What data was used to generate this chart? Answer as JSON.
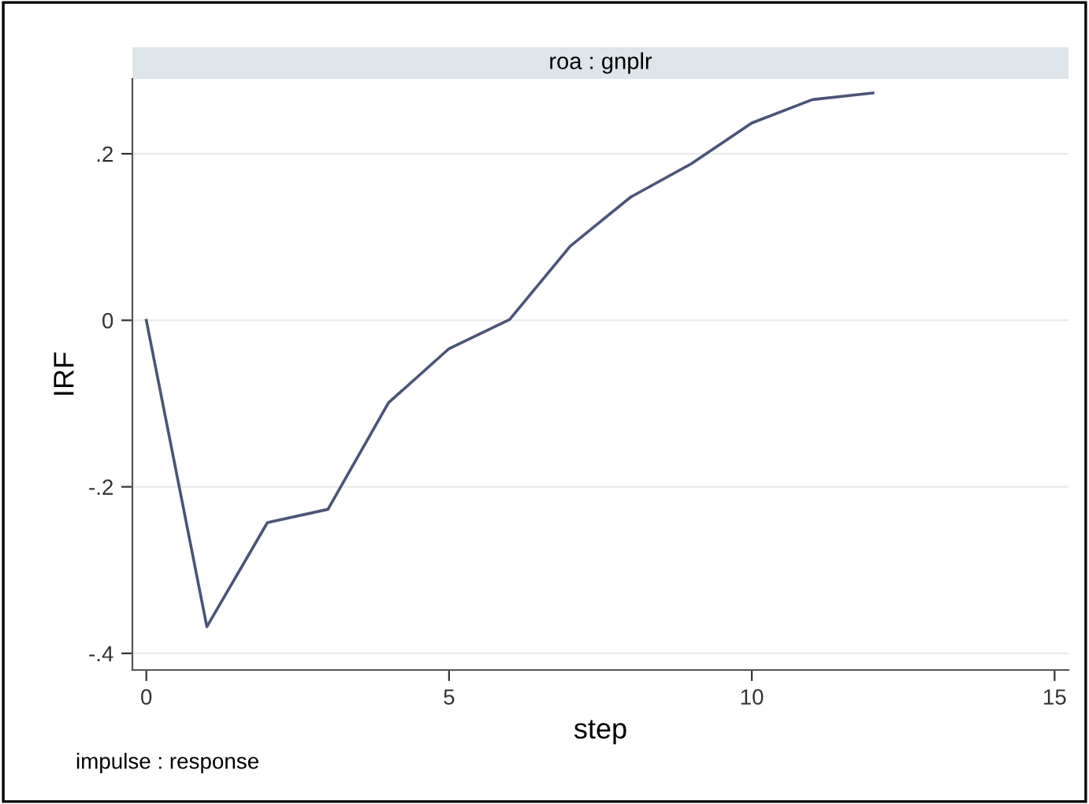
{
  "chart_data": {
    "type": "line",
    "title": "roa : gnplr",
    "xlabel": "step",
    "ylabel": "IRF",
    "x": [
      0,
      1,
      2,
      3,
      4,
      5,
      6,
      7,
      8,
      9,
      10,
      11,
      12
    ],
    "series": [
      {
        "color": "#4b5478",
        "values": [
          0,
          -0.368,
          -0.243,
          -0.227,
          -0.099,
          -0.034,
          0.001,
          0.089,
          0.148,
          0.188,
          0.237,
          0.265,
          0.273
        ]
      }
    ],
    "xlim": [
      -0.23,
      15.23
    ],
    "xticks": [
      0,
      5,
      10,
      15
    ],
    "ylim": [
      -0.42,
      0.29
    ],
    "yticks": [
      {
        "value": -0.4,
        "label": "-.4"
      },
      {
        "value": -0.2,
        "label": "-.2"
      },
      0,
      {
        "value": 0.2,
        "label": ".2"
      }
    ],
    "grid": "y",
    "legend": false,
    "marker": "none",
    "line_style": "solid",
    "annotations": [
      "impulse : response"
    ]
  }
}
